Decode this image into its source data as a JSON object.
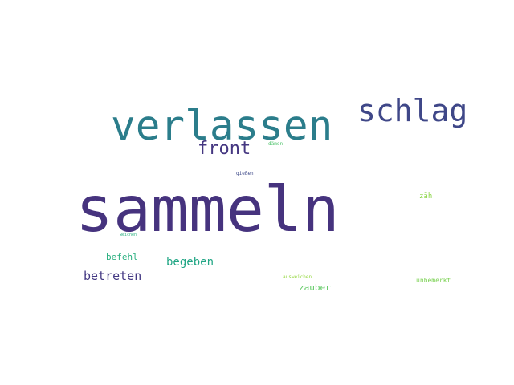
{
  "words": [
    {
      "text": "sammeln",
      "color": "#46337e"
    },
    {
      "text": "verlassen",
      "color": "#2b7d8b"
    },
    {
      "text": "schlag",
      "color": "#3f4788"
    },
    {
      "text": "front",
      "color": "#453781"
    },
    {
      "text": "betreten",
      "color": "#443983"
    },
    {
      "text": "begeben",
      "color": "#21a685"
    },
    {
      "text": "befehl",
      "color": "#29af7f"
    },
    {
      "text": "zauber",
      "color": "#5ec962"
    },
    {
      "text": "unbemerkt",
      "color": "#7ad151"
    },
    {
      "text": "zäh",
      "color": "#8bd646"
    },
    {
      "text": "ausweichen",
      "color": "#95d840"
    },
    {
      "text": "dämon",
      "color": "#4ec36b"
    },
    {
      "text": "gießen",
      "color": "#3e4a89"
    },
    {
      "text": "weichen",
      "color": "#29af7f"
    }
  ]
}
